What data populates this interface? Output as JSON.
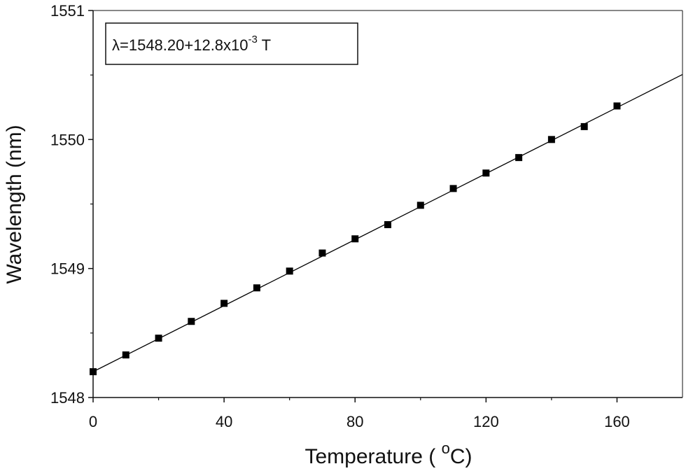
{
  "chart_data": {
    "type": "scatter",
    "title": "",
    "xlabel": "Temperature ( ",
    "xlabel_sup": "o",
    "xlabel_tail": "C)",
    "ylabel": "Wavelength (nm)",
    "xlim": [
      0,
      180
    ],
    "ylim": [
      1548,
      1551
    ],
    "xticks": [
      0,
      40,
      80,
      120,
      160
    ],
    "xtick_labels": [
      "0",
      "40",
      "80",
      "120",
      "160"
    ],
    "yticks": [
      1548,
      1549,
      1550,
      1551
    ],
    "ytick_labels": [
      "1548",
      "1549",
      "1550",
      "1551"
    ],
    "grid": false,
    "series": [
      {
        "marker": "square",
        "color": "#000000",
        "x": [
          0,
          10,
          20,
          30,
          40,
          50,
          60,
          70,
          80,
          90,
          100,
          110,
          120,
          130,
          140,
          150,
          160
        ],
        "y": [
          1548.2,
          1548.33,
          1548.46,
          1548.59,
          1548.73,
          1548.85,
          1548.98,
          1549.12,
          1549.23,
          1549.34,
          1549.49,
          1549.62,
          1549.74,
          1549.86,
          1550.0,
          1550.1,
          1550.26
        ]
      }
    ],
    "fit_line": {
      "intercept": 1548.2,
      "slope": 0.0128,
      "x_range": [
        0,
        180
      ],
      "color": "#000000"
    },
    "annotation": {
      "text_main": "λ=1548.20+12.8x10",
      "text_sup": "-3",
      "text_tail": " T",
      "placement": "top-left"
    }
  }
}
